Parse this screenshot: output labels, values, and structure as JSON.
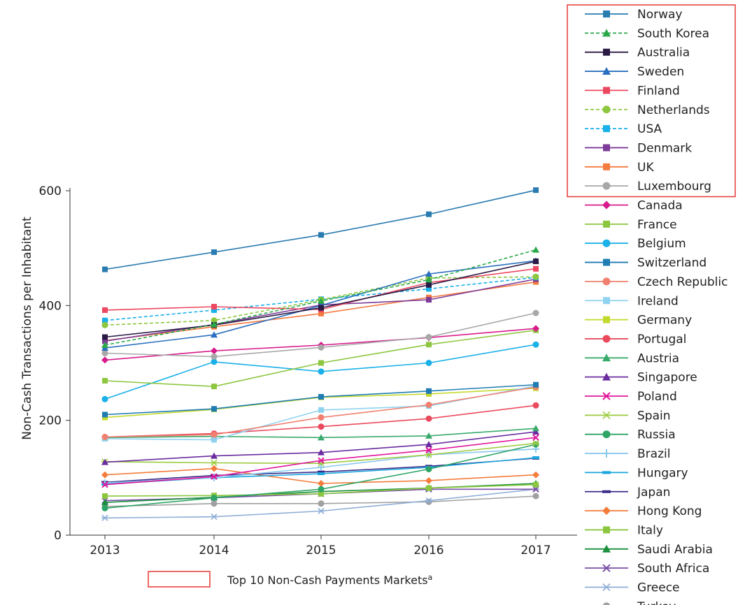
{
  "chart_data": {
    "type": "line",
    "ylabel": "Non-Cash Transactions per Inhabitant",
    "xlabel": "",
    "x": [
      "2013",
      "2014",
      "2015",
      "2016",
      "2017"
    ],
    "ylim": [
      0,
      600
    ],
    "yticks": [
      0,
      200,
      400,
      600
    ],
    "top10_caption": "Top 10 Non-Cash Payments Markets",
    "top10_caption_sup": "a",
    "series": [
      {
        "name": "Norway",
        "color": "#2a7bb0",
        "marker": "square",
        "dashed": false,
        "top10": true,
        "values": [
          463,
          493,
          523,
          559,
          601
        ]
      },
      {
        "name": "South Korea",
        "color": "#2aa84a",
        "marker": "triangle",
        "dashed": true,
        "top10": true,
        "values": [
          331,
          367,
          408,
          445,
          497
        ]
      },
      {
        "name": "Australia",
        "color": "#2a1a44",
        "marker": "square",
        "dashed": false,
        "top10": true,
        "values": [
          345,
          366,
          396,
          436,
          477
        ]
      },
      {
        "name": "Sweden",
        "color": "#2b6fc0",
        "marker": "triangle",
        "dashed": false,
        "top10": true,
        "values": [
          326,
          349,
          400,
          455,
          478
        ]
      },
      {
        "name": "Finland",
        "color": "#ec4760",
        "marker": "square",
        "dashed": false,
        "top10": true,
        "values": [
          392,
          398,
          393,
          440,
          464
        ]
      },
      {
        "name": "Netherlands",
        "color": "#8dc63f",
        "marker": "circle",
        "dashed": true,
        "top10": true,
        "values": [
          366,
          374,
          410,
          448,
          450
        ]
      },
      {
        "name": "USA",
        "color": "#1ab0e8",
        "marker": "square",
        "dashed": true,
        "top10": true,
        "values": [
          374,
          392,
          411,
          429,
          449
        ]
      },
      {
        "name": "Denmark",
        "color": "#7d3c98",
        "marker": "square",
        "dashed": false,
        "top10": true,
        "values": [
          338,
          367,
          401,
          410,
          446
        ]
      },
      {
        "name": "UK",
        "color": "#f47b3f",
        "marker": "square",
        "dashed": false,
        "top10": true,
        "values": [
          339,
          363,
          386,
          414,
          441
        ]
      },
      {
        "name": "Luxembourg",
        "color": "#a8a8a8",
        "marker": "circle",
        "dashed": false,
        "top10": true,
        "values": [
          317,
          311,
          327,
          345,
          387
        ]
      },
      {
        "name": "Canada",
        "color": "#d81b8c",
        "marker": "diamond",
        "dashed": false,
        "top10": false,
        "values": [
          305,
          321,
          331,
          344,
          360
        ]
      },
      {
        "name": "France",
        "color": "#8dc63f",
        "marker": "square",
        "dashed": false,
        "top10": false,
        "values": [
          269,
          259,
          300,
          332,
          357
        ]
      },
      {
        "name": "Belgium",
        "color": "#1ab0e8",
        "marker": "circle",
        "dashed": false,
        "top10": false,
        "values": [
          237,
          302,
          285,
          300,
          332
        ]
      },
      {
        "name": "Switzerland",
        "color": "#1f7cb3",
        "marker": "square",
        "dashed": false,
        "top10": false,
        "values": [
          210,
          220,
          241,
          251,
          262
        ]
      },
      {
        "name": "Czech Republic",
        "color": "#f08070",
        "marker": "circle",
        "dashed": false,
        "top10": false,
        "values": [
          171,
          175,
          205,
          227,
          258
        ]
      },
      {
        "name": "Ireland",
        "color": "#8fd3f0",
        "marker": "square",
        "dashed": false,
        "top10": false,
        "values": [
          168,
          166,
          218,
          225,
          260
        ]
      },
      {
        "name": "Germany",
        "color": "#c4d92e",
        "marker": "square",
        "dashed": false,
        "top10": false,
        "values": [
          205,
          219,
          240,
          246,
          256
        ]
      },
      {
        "name": "Portugal",
        "color": "#ea4a5e",
        "marker": "circle",
        "dashed": false,
        "top10": false,
        "values": [
          171,
          177,
          189,
          203,
          226
        ]
      },
      {
        "name": "Austria",
        "color": "#3aaa6c",
        "marker": "triangle",
        "dashed": false,
        "top10": false,
        "values": [
          170,
          172,
          170,
          173,
          186
        ]
      },
      {
        "name": "Singapore",
        "color": "#6a2ca0",
        "marker": "triangle",
        "dashed": false,
        "top10": false,
        "values": [
          127,
          138,
          144,
          158,
          180
        ]
      },
      {
        "name": "Poland",
        "color": "#e0179b",
        "marker": "x",
        "dashed": false,
        "top10": false,
        "values": [
          88,
          102,
          130,
          148,
          170
        ]
      },
      {
        "name": "Spain",
        "color": "#9ccc3f",
        "marker": "star",
        "dashed": false,
        "top10": false,
        "values": [
          128,
          126,
          125,
          140,
          160
        ]
      },
      {
        "name": "Russia",
        "color": "#2ea566",
        "marker": "circle",
        "dashed": false,
        "top10": false,
        "values": [
          47,
          65,
          80,
          115,
          158
        ]
      },
      {
        "name": "Brazil",
        "color": "#8ac8ee",
        "marker": "plus",
        "dashed": false,
        "top10": false,
        "values": [
          91,
          100,
          118,
          140,
          150
        ]
      },
      {
        "name": "Hungary",
        "color": "#19a6de",
        "marker": "dash",
        "dashed": false,
        "top10": false,
        "values": [
          89,
          100,
          107,
          118,
          135
        ]
      },
      {
        "name": "Japan",
        "color": "#3a2c88",
        "marker": "dash",
        "dashed": false,
        "top10": false,
        "values": [
          92,
          104,
          110,
          120,
          134
        ]
      },
      {
        "name": "Hong Kong",
        "color": "#f47c3c",
        "marker": "diamond",
        "dashed": false,
        "top10": false,
        "values": [
          105,
          116,
          90,
          95,
          105
        ]
      },
      {
        "name": "Italy",
        "color": "#8cc63f",
        "marker": "square",
        "dashed": false,
        "top10": false,
        "values": [
          68,
          69,
          72,
          82,
          88
        ]
      },
      {
        "name": "Saudi Arabia",
        "color": "#1a8f3c",
        "marker": "triangle",
        "dashed": false,
        "top10": false,
        "values": [
          57,
          66,
          76,
          82,
          90
        ]
      },
      {
        "name": "South Africa",
        "color": "#7a4fa8",
        "marker": "x",
        "dashed": false,
        "top10": false,
        "values": [
          60,
          65,
          72,
          80,
          80
        ]
      },
      {
        "name": "Greece",
        "color": "#8faed6",
        "marker": "star",
        "dashed": false,
        "top10": false,
        "values": [
          30,
          32,
          42,
          60,
          80
        ]
      },
      {
        "name": "Turkey",
        "color": "#a0a0a0",
        "marker": "circle",
        "dashed": false,
        "top10": false,
        "values": [
          50,
          55,
          55,
          58,
          68
        ]
      }
    ]
  }
}
